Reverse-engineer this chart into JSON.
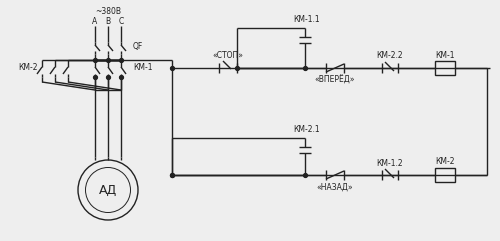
{
  "bg_color": "#eeeeee",
  "line_color": "#222222",
  "lw": 1.0,
  "lw_thick": 1.8,
  "fs": 6.0,
  "fs_small": 5.5,
  "labels": {
    "voltage": "~380B",
    "A": "A",
    "B": "B",
    "C": "C",
    "QF": "QF",
    "KM2": "КМ-2",
    "KM1": "КМ-1",
    "AD": "АД",
    "STOP": "«СТОП»",
    "KM11": "КМ-1.1",
    "VPERED": "«ВПЕРЁД»",
    "KM22": "КМ-2.2",
    "KM1_coil": "КМ-1",
    "KM21": "КМ-2.1",
    "NAZAD": "«НАЗАД»",
    "KM12": "КМ-1.2",
    "KM2_coil": "КМ-2"
  }
}
